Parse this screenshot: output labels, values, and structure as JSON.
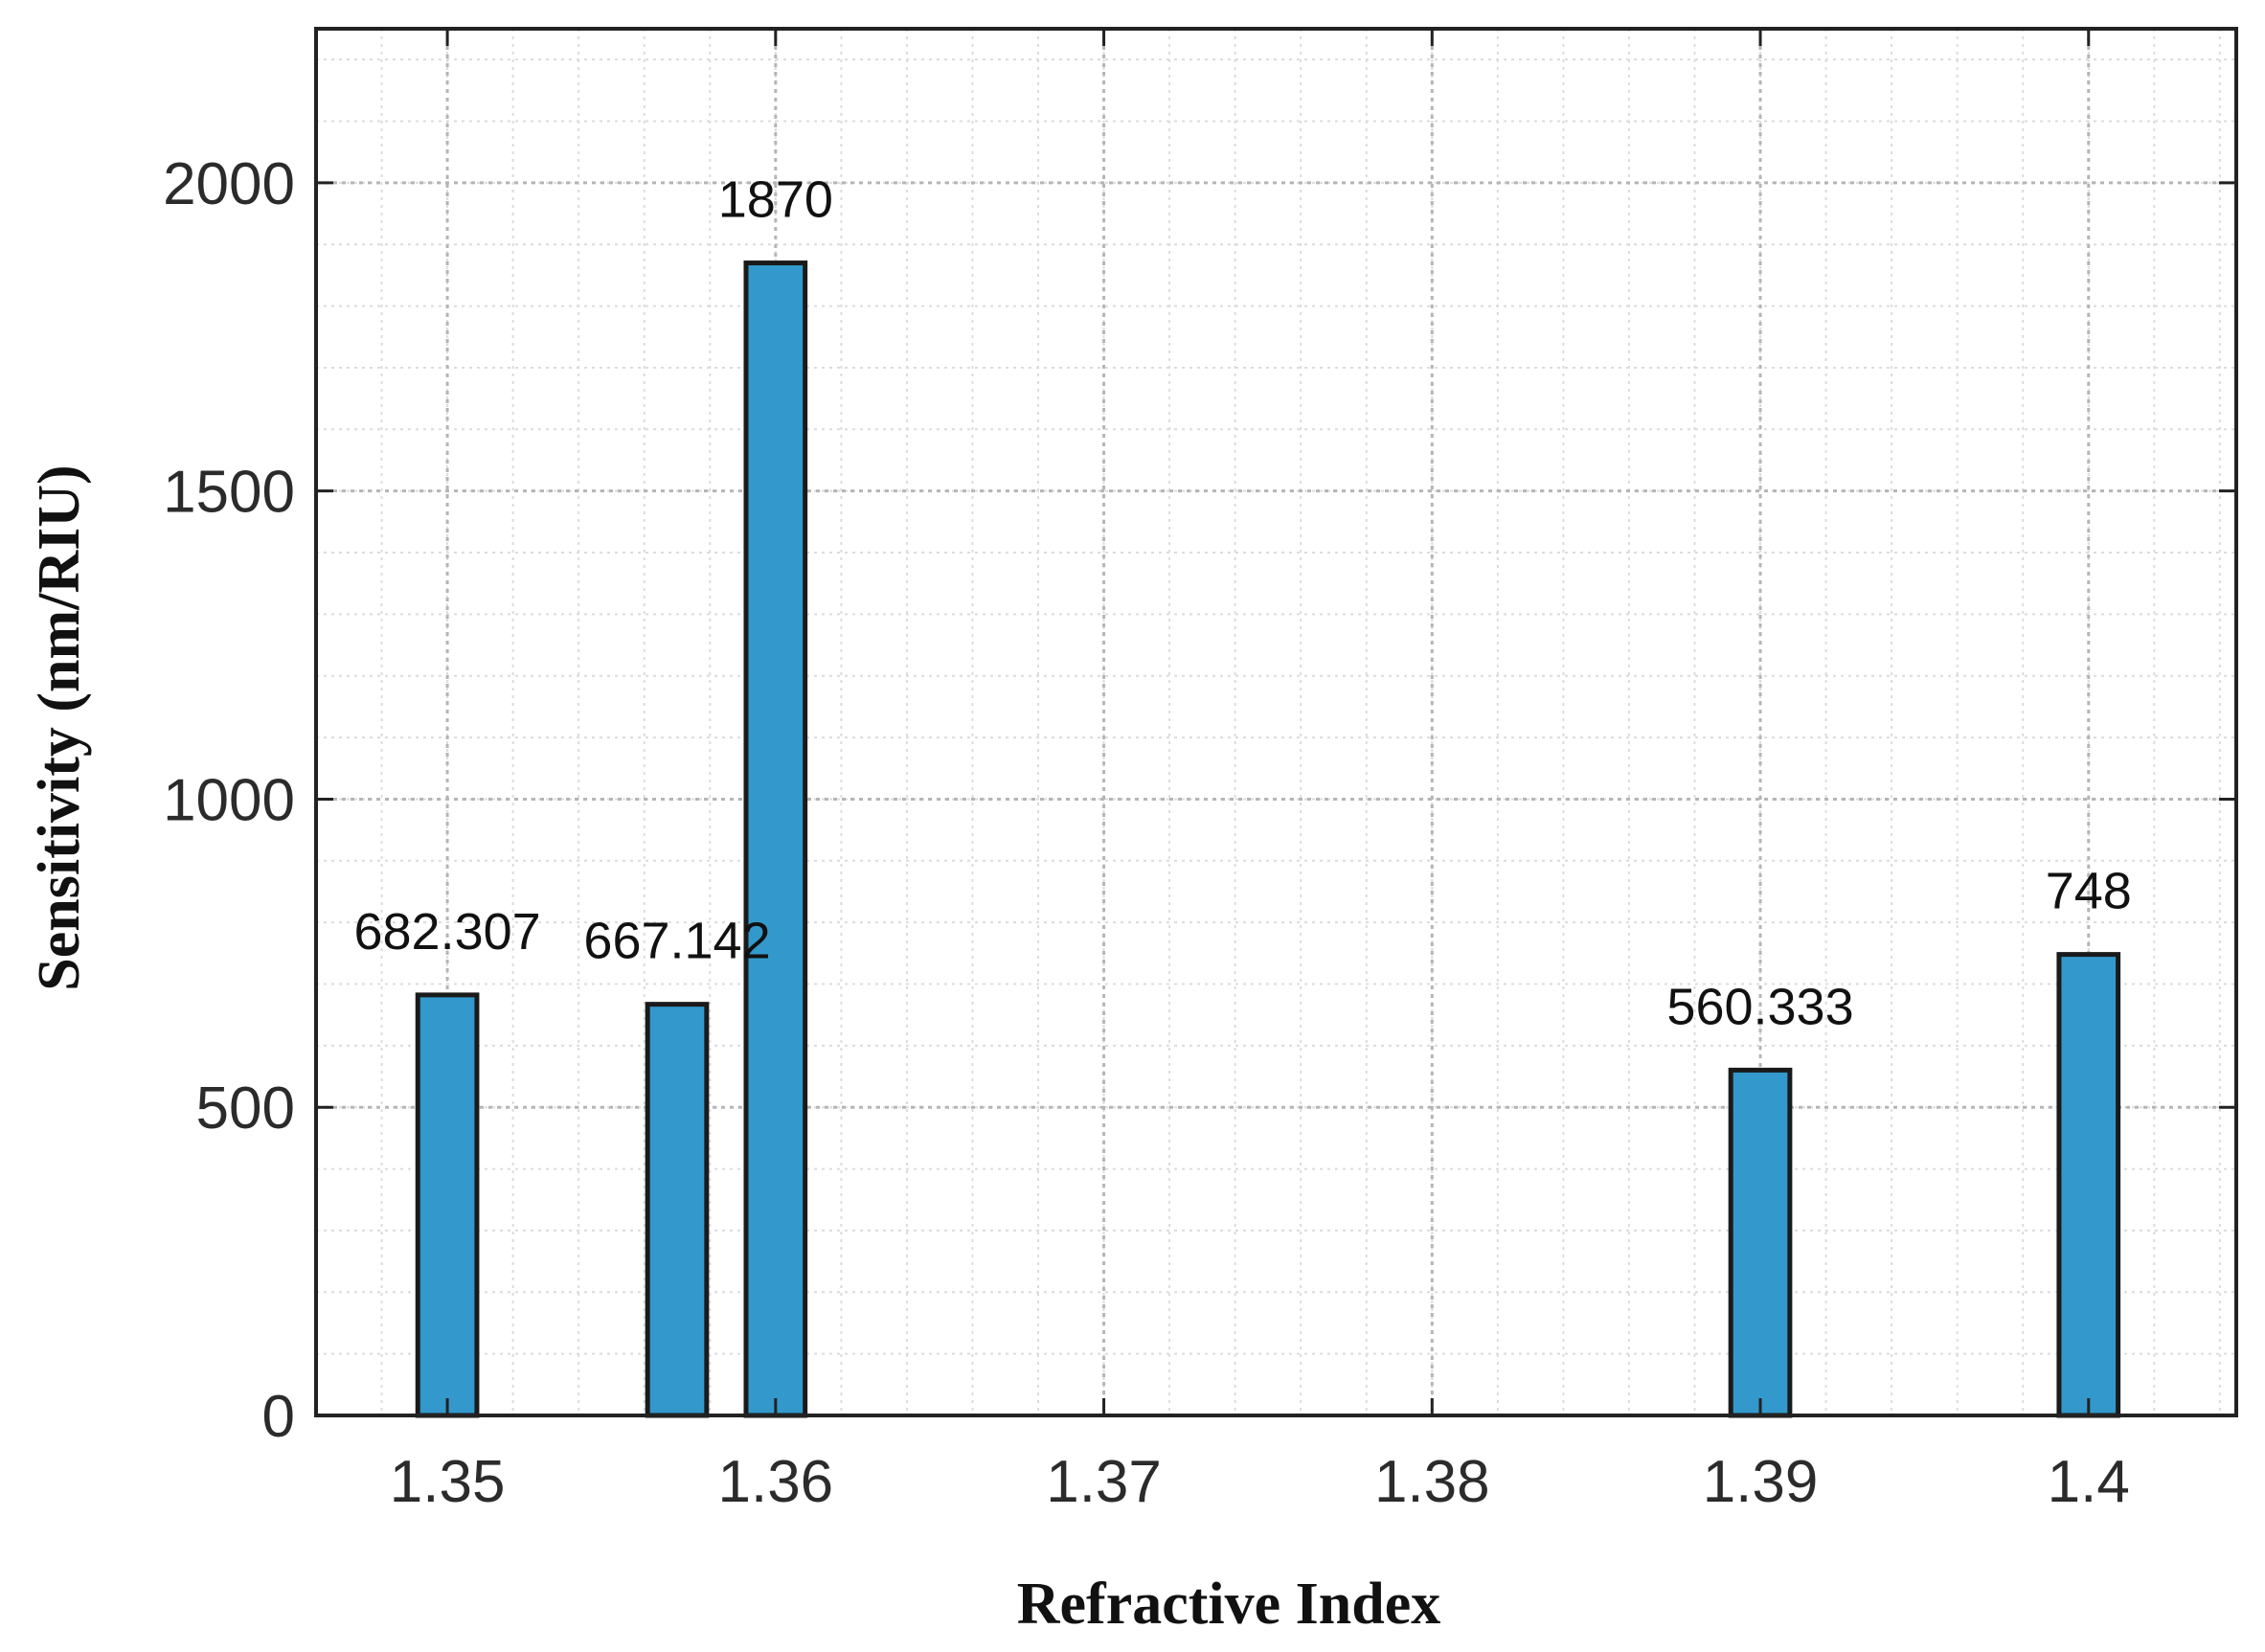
{
  "chart_data": {
    "type": "bar",
    "xlabel": "Refractive Index",
    "ylabel": "Sensitivity (nm/RIU)",
    "x": [
      1.35,
      1.357,
      1.36,
      1.39,
      1.4
    ],
    "values": [
      682.307,
      667.142,
      1870,
      560.333,
      748
    ],
    "data_labels": [
      "682.307",
      "667.142",
      "1870",
      "560.333",
      "748"
    ],
    "xlim": [
      1.346,
      1.4045
    ],
    "ylim": [
      0,
      2250
    ],
    "xticks": [
      1.35,
      1.36,
      1.37,
      1.38,
      1.39,
      1.4
    ],
    "xtick_labels": [
      "1.35",
      "1.36",
      "1.37",
      "1.38",
      "1.39",
      "1.4"
    ],
    "yticks": [
      0,
      500,
      1000,
      1500,
      2000
    ],
    "ytick_labels": [
      "0",
      "500",
      "1000",
      "1500",
      "2000"
    ],
    "grid": true,
    "minor_grid": true,
    "bar_color": "#3399cc",
    "bar_edge_color": "#1a1a1a"
  }
}
